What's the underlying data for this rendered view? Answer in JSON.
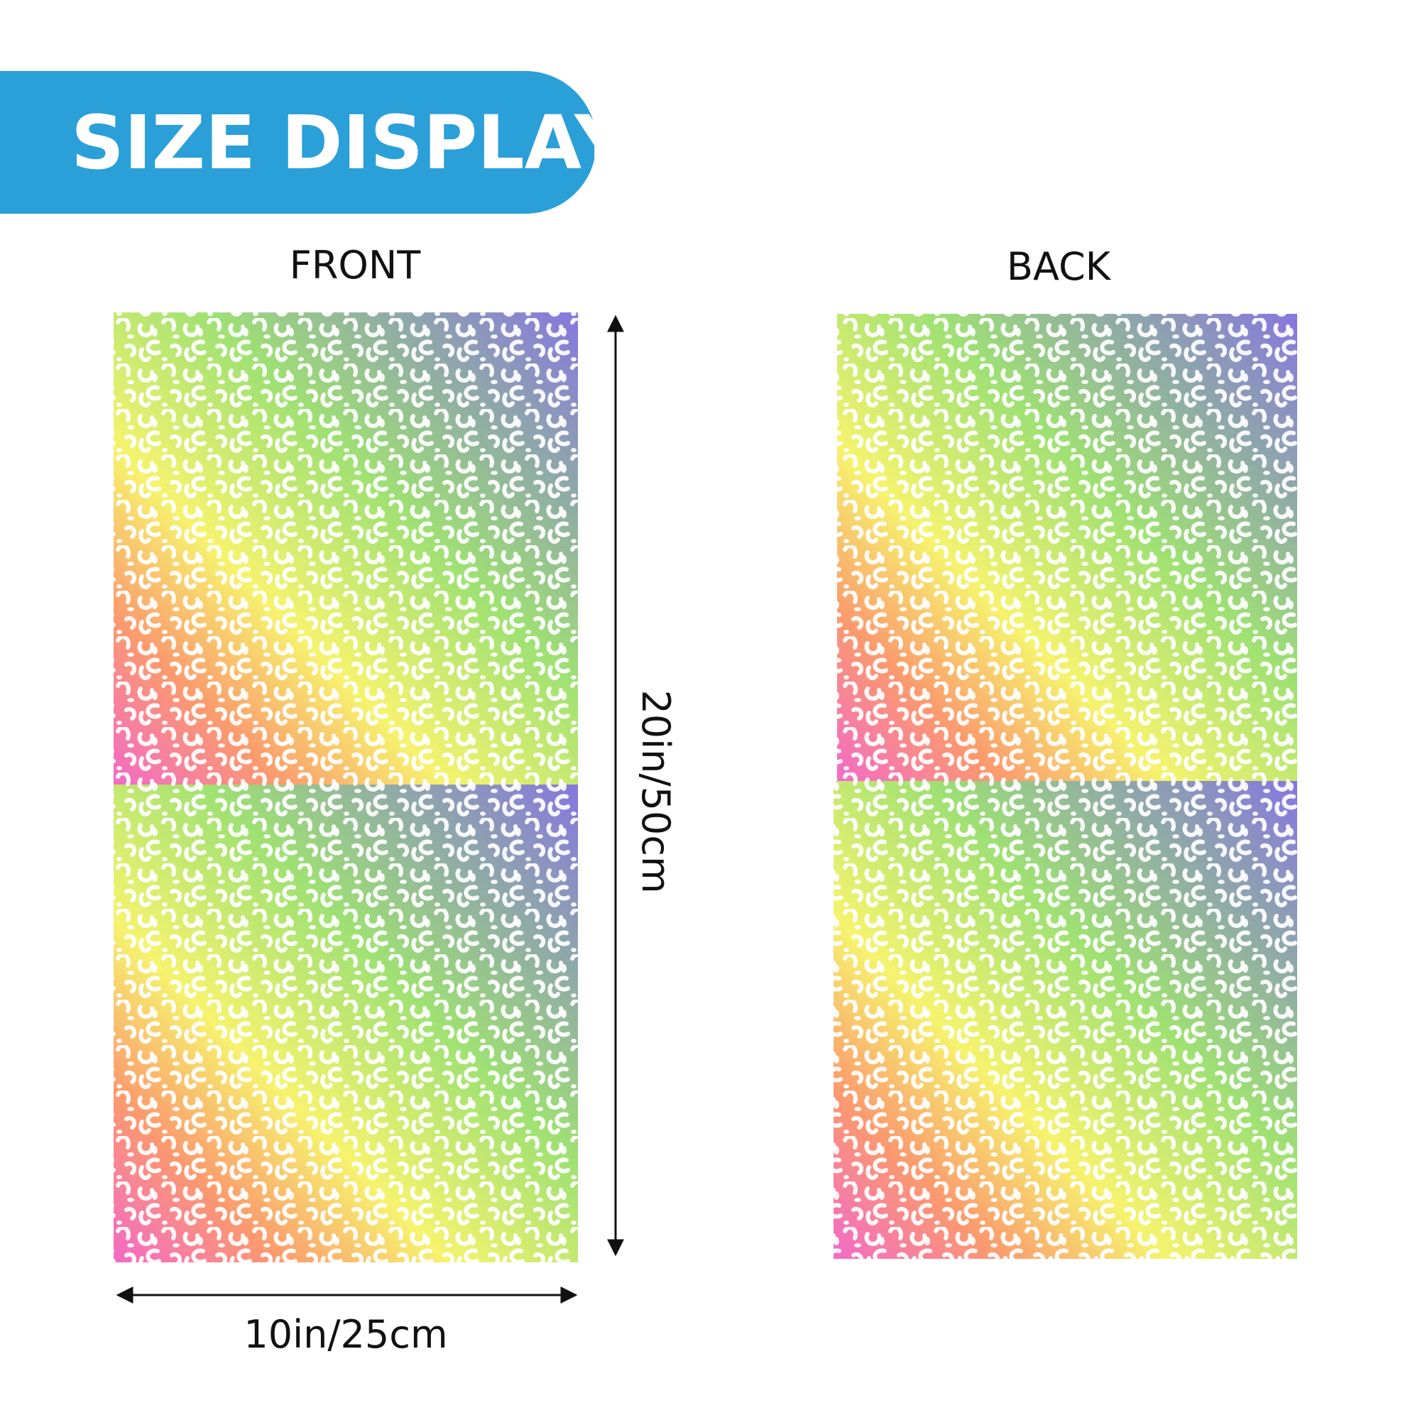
{
  "header": {
    "title": "SIZE DISPLAY"
  },
  "panels": {
    "front": {
      "label": "FRONT"
    },
    "back": {
      "label": "BACK"
    }
  },
  "dimensions": {
    "height": "20in/50cm",
    "width": "10in/25cm"
  }
}
